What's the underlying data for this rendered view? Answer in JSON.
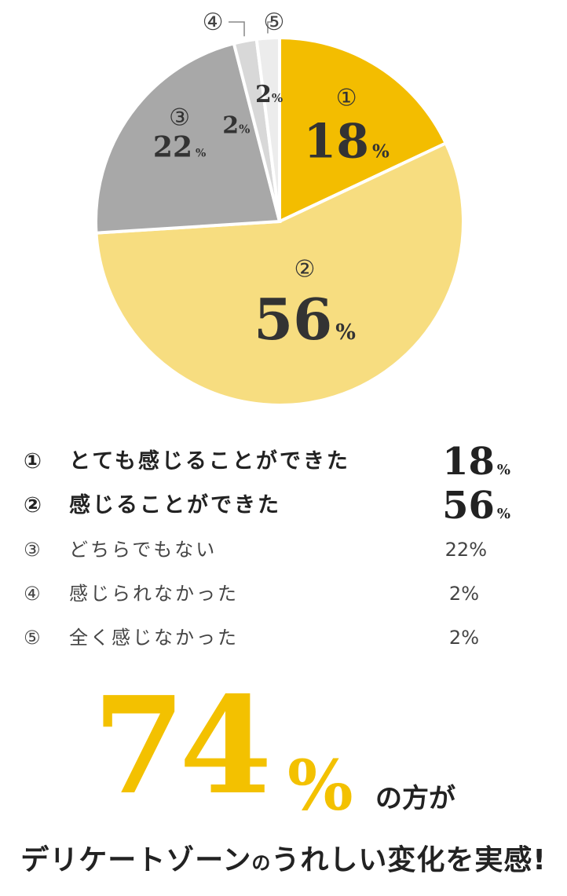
{
  "chart_data": {
    "type": "pie",
    "slices": [
      {
        "marker": "①",
        "label": "とても感じることができた",
        "value": 18,
        "color": "#f3bd00"
      },
      {
        "marker": "②",
        "label": "感じることができた",
        "value": 56,
        "color": "#f7dd80"
      },
      {
        "marker": "③",
        "label": "どちらでもない",
        "value": 22,
        "color": "#a8a8a8"
      },
      {
        "marker": "④",
        "label": "感じられなかった",
        "value": 2,
        "color": "#d8d8d8"
      },
      {
        "marker": "⑤",
        "label": "全く感じなかった",
        "value": 2,
        "color": "#ececec"
      }
    ],
    "percent_sign": "%"
  },
  "legend": {
    "rows": [
      {
        "marker": "①",
        "label": "とても感じることができた",
        "value": "18",
        "unit": "%"
      },
      {
        "marker": "②",
        "label": "感じることができた",
        "value": "56",
        "unit": "%"
      },
      {
        "marker": "③",
        "label": "どちらでもない",
        "value": "22%"
      },
      {
        "marker": "④",
        "label": "感じられなかった",
        "value": "2%"
      },
      {
        "marker": "⑤",
        "label": "全く感じなかった",
        "value": "2%"
      }
    ]
  },
  "headline": {
    "number": "74",
    "percent": "%",
    "suffix": "の方が"
  },
  "tagline": {
    "part1": "デリケートゾーン",
    "part2": "の",
    "part3": "うれしい変化を実感!"
  },
  "colors": {
    "accent": "#f3c100",
    "text": "#333333"
  }
}
